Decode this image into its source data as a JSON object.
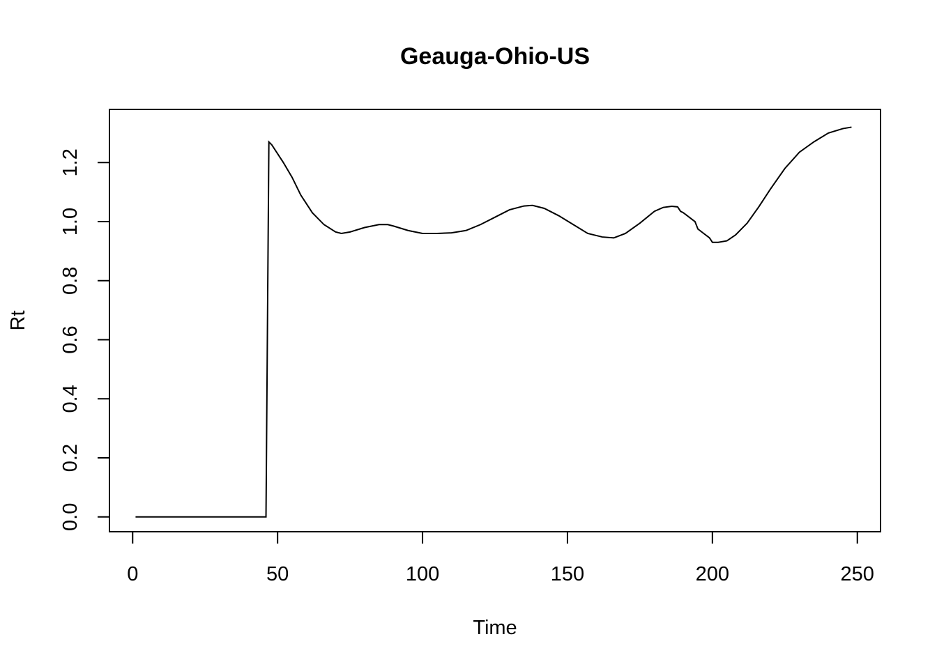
{
  "chart_data": {
    "type": "line",
    "title": "Geauga-Ohio-US",
    "xlabel": "Time",
    "ylabel": "Rt",
    "xlim": [
      -8,
      258
    ],
    "ylim": [
      -0.05,
      1.38
    ],
    "xticks": [
      0,
      50,
      100,
      150,
      200,
      250
    ],
    "xtick_labels": [
      "0",
      "50",
      "100",
      "150",
      "200",
      "250"
    ],
    "yticks": [
      0.0,
      0.2,
      0.4,
      0.6,
      0.8,
      1.0,
      1.2
    ],
    "ytick_labels": [
      "0.0",
      "0.2",
      "0.4",
      "0.6",
      "0.8",
      "1.0",
      "1.2"
    ],
    "grid": false,
    "line_color": "#000000",
    "series": [
      {
        "x": [
          1,
          10,
          20,
          30,
          40,
          46,
          47,
          48,
          50,
          52,
          55,
          58,
          62,
          66,
          70,
          72,
          75,
          80,
          85,
          88,
          90,
          95,
          100,
          105,
          110,
          115,
          120,
          125,
          130,
          135,
          138,
          142,
          147,
          152,
          157,
          162,
          166,
          170,
          175,
          180,
          183,
          186,
          188,
          189,
          190,
          192,
          194,
          195,
          197,
          199,
          200,
          202,
          205,
          208,
          212,
          216,
          220,
          225,
          230,
          235,
          240,
          245,
          248
        ],
        "y": [
          0.0,
          0.0,
          0.0,
          0.0,
          0.0,
          0.0,
          1.27,
          1.26,
          1.23,
          1.2,
          1.15,
          1.09,
          1.03,
          0.99,
          0.965,
          0.96,
          0.965,
          0.98,
          0.99,
          0.99,
          0.985,
          0.97,
          0.96,
          0.96,
          0.962,
          0.97,
          0.99,
          1.015,
          1.04,
          1.053,
          1.055,
          1.045,
          1.02,
          0.99,
          0.96,
          0.948,
          0.945,
          0.96,
          0.995,
          1.035,
          1.048,
          1.052,
          1.05,
          1.035,
          1.03,
          1.015,
          1.0,
          0.975,
          0.96,
          0.945,
          0.93,
          0.93,
          0.935,
          0.955,
          0.995,
          1.05,
          1.11,
          1.18,
          1.235,
          1.27,
          1.3,
          1.315,
          1.32
        ]
      }
    ]
  }
}
